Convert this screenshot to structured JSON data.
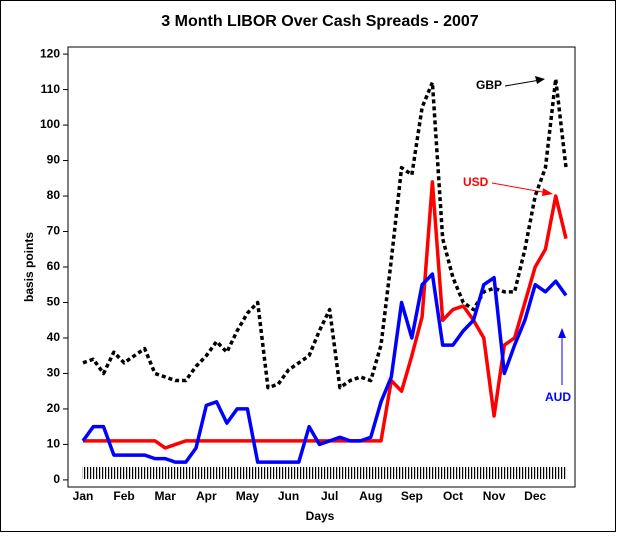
{
  "chart_data": {
    "type": "line",
    "title": "3 Month LIBOR Over Cash Spreads - 2007",
    "x_label": "Days",
    "y_label": "basis points",
    "categories": [
      "Jan",
      null,
      null,
      null,
      "Feb",
      null,
      null,
      null,
      "Mar",
      null,
      null,
      null,
      "Apr",
      null,
      null,
      null,
      "May",
      null,
      null,
      null,
      "Jun",
      null,
      null,
      null,
      "Jul",
      null,
      null,
      null,
      "Aug",
      null,
      null,
      null,
      "Sep",
      null,
      null,
      null,
      "Oct",
      null,
      null,
      null,
      "Nov",
      null,
      null,
      null,
      "Dec",
      null,
      null,
      null
    ],
    "series": [
      {
        "name": "GBP",
        "color": "#000000",
        "dash": true,
        "values": [
          33,
          34,
          30,
          36,
          33,
          35,
          37,
          30,
          29,
          28,
          28,
          32,
          35,
          39,
          36,
          42,
          47,
          50,
          26,
          27,
          31,
          33,
          35,
          42,
          48,
          26,
          28,
          29,
          28,
          38,
          62,
          88,
          86,
          105,
          112,
          68,
          57,
          50,
          48,
          53,
          54,
          53,
          53,
          65,
          80,
          88,
          113,
          88
        ]
      },
      {
        "name": "USD",
        "color": "#ff0000",
        "dash": false,
        "values": [
          11,
          11,
          11,
          11,
          11,
          11,
          11,
          11,
          9,
          10,
          11,
          11,
          11,
          11,
          11,
          11,
          11,
          11,
          11,
          11,
          11,
          11,
          11,
          11,
          11,
          11,
          11,
          11,
          11,
          11,
          28,
          25,
          35,
          46,
          84,
          45,
          48,
          49,
          45,
          40,
          18,
          38,
          40,
          50,
          60,
          65,
          80,
          68
        ]
      },
      {
        "name": "AUD",
        "color": "#0000ff",
        "dash": false,
        "values": [
          11,
          15,
          15,
          7,
          7,
          7,
          7,
          6,
          6,
          5,
          5,
          9,
          21,
          22,
          16,
          20,
          20,
          5,
          5,
          5,
          5,
          5,
          15,
          10,
          11,
          12,
          11,
          11,
          12,
          22,
          29,
          50,
          40,
          55,
          58,
          38,
          38,
          42,
          45,
          55,
          57,
          30,
          38,
          45,
          55,
          53,
          56,
          52
        ]
      }
    ],
    "ylim": [
      -2,
      122
    ],
    "yticks": [
      0,
      10,
      20,
      30,
      40,
      50,
      60,
      70,
      80,
      90,
      100,
      110,
      120
    ]
  }
}
